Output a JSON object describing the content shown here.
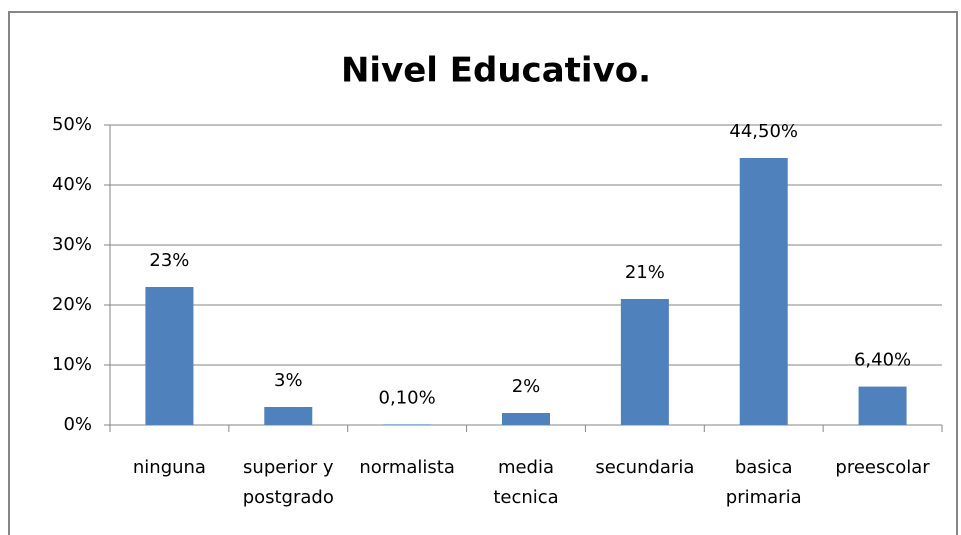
{
  "chart_data": {
    "type": "bar",
    "title": "Nivel Educativo.",
    "categories": [
      "ninguna",
      "superior y\npostgrado",
      "normalista",
      "media\ntecnica",
      "secundaria",
      "basica\nprimaria",
      "preescolar"
    ],
    "values": [
      23,
      3,
      0.1,
      2,
      21,
      44.5,
      6.4
    ],
    "value_labels": [
      "23%",
      "3%",
      "0,10%",
      "2%",
      "21%",
      "44,50%",
      "6,40%"
    ],
    "color": "#4f81bd",
    "ylim": [
      0,
      50
    ],
    "yticks": [
      {
        "value": 0,
        "label": "0%"
      },
      {
        "value": 10,
        "label": "10%"
      },
      {
        "value": 20,
        "label": "20%"
      },
      {
        "value": 30,
        "label": "30%"
      },
      {
        "value": 40,
        "label": "40%"
      },
      {
        "value": 50,
        "label": "50%"
      }
    ],
    "grid": true
  }
}
